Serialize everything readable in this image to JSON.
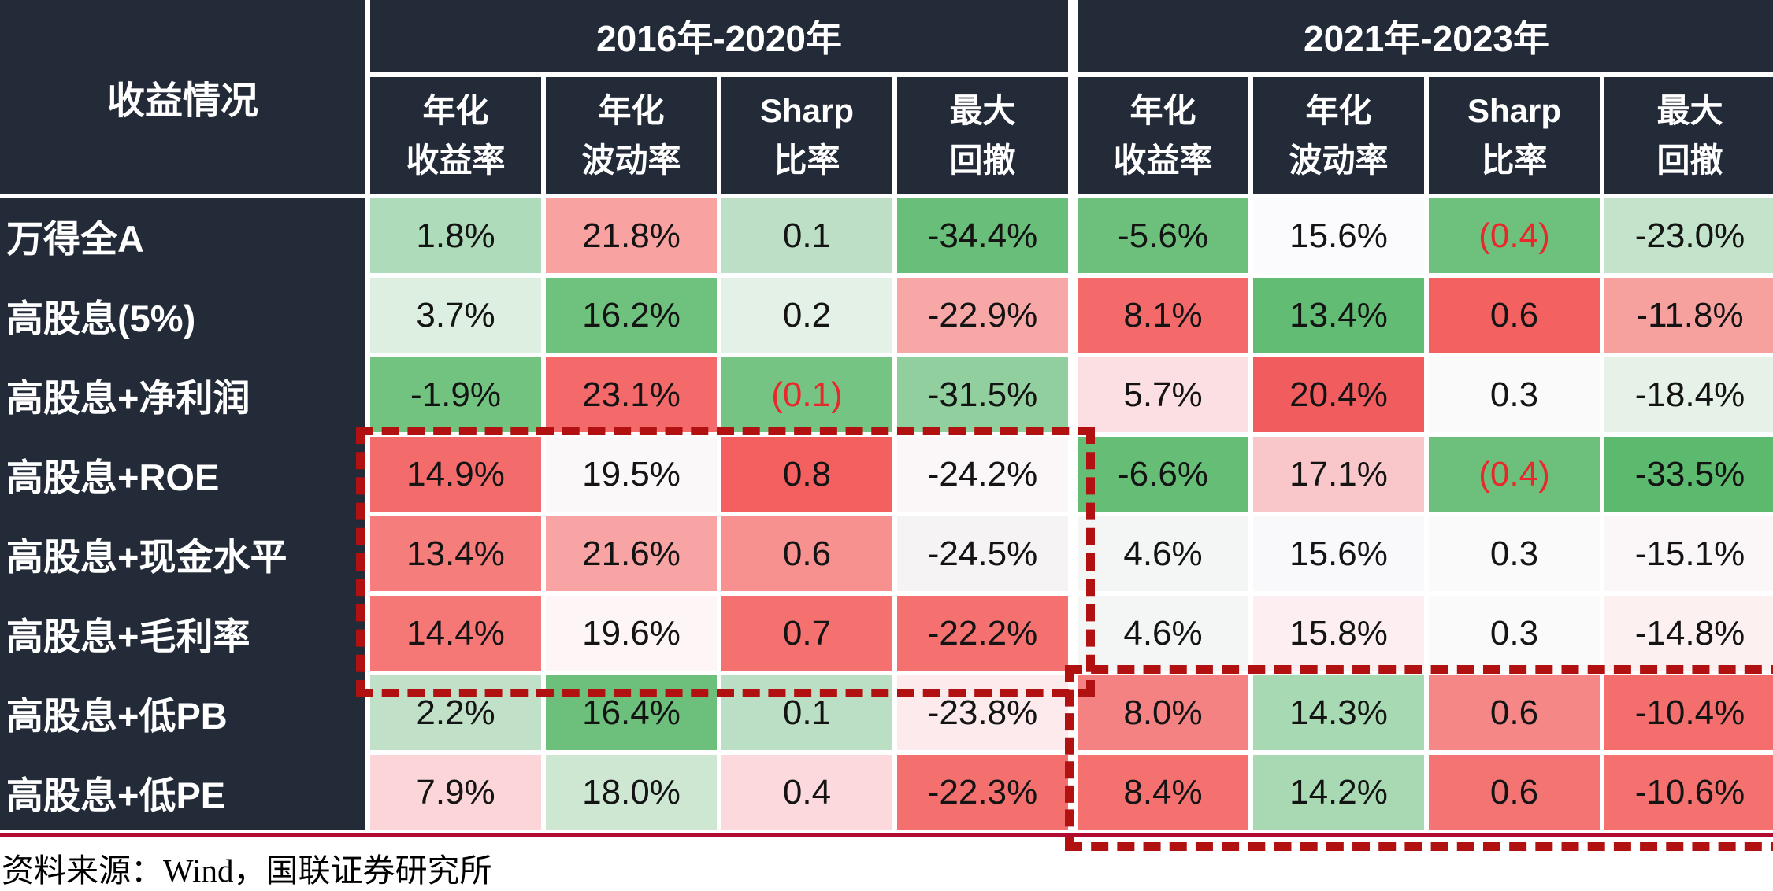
{
  "table": {
    "corner_header": "收益情况",
    "groups": [
      {
        "label": "2016年-2020年"
      },
      {
        "label": "2021年-2023年"
      }
    ],
    "metrics": [
      {
        "line1": "年化",
        "line2": "收益率"
      },
      {
        "line1": "年化",
        "line2": "波动率"
      },
      {
        "line1": "Sharp",
        "line2": "比率"
      },
      {
        "line1": "最大",
        "line2": "回撤"
      }
    ],
    "rows": [
      {
        "label": "万得全A",
        "cells": [
          {
            "text": "1.8%",
            "bg": "#AEDCBA"
          },
          {
            "text": "21.8%",
            "bg": "#F8A2A2"
          },
          {
            "text": "0.1",
            "bg": "#BCDFC5"
          },
          {
            "text": "-34.4%",
            "bg": "#69BE79"
          },
          {
            "text": "-5.6%",
            "bg": "#6CC07B"
          },
          {
            "text": "15.6%",
            "bg": "#FBFBFD"
          },
          {
            "text": "(0.4)",
            "bg": "#6EC17D",
            "fg": "#E8282B"
          },
          {
            "text": "-23.0%",
            "bg": "#C3E3CA"
          }
        ]
      },
      {
        "label": "高股息(5%)",
        "cells": [
          {
            "text": "3.7%",
            "bg": "#DCEFE1"
          },
          {
            "text": "16.2%",
            "bg": "#6FC17E"
          },
          {
            "text": "0.2",
            "bg": "#E3F1E6"
          },
          {
            "text": "-22.9%",
            "bg": "#F8A7A7"
          },
          {
            "text": "8.1%",
            "bg": "#F4696A"
          },
          {
            "text": "13.4%",
            "bg": "#62BC74"
          },
          {
            "text": "0.6",
            "bg": "#F36160"
          },
          {
            "text": "-11.8%",
            "bg": "#F7A19F"
          }
        ]
      },
      {
        "label": "高股息+净利润",
        "cells": [
          {
            "text": "-1.9%",
            "bg": "#72C280"
          },
          {
            "text": "23.1%",
            "bg": "#F4696A"
          },
          {
            "text": "(0.1)",
            "bg": "#76C483",
            "fg": "#E8282B"
          },
          {
            "text": "-31.5%",
            "bg": "#92CF9E"
          },
          {
            "text": "5.7%",
            "bg": "#FCDFE2"
          },
          {
            "text": "20.4%",
            "bg": "#F15D5E"
          },
          {
            "text": "0.3",
            "bg": "#FAFAFB"
          },
          {
            "text": "-18.4%",
            "bg": "#E6F2E8"
          }
        ]
      },
      {
        "label": "高股息+ROE",
        "cells": [
          {
            "text": "14.9%",
            "bg": "#F46B6B"
          },
          {
            "text": "19.5%",
            "bg": "#FBF8F9"
          },
          {
            "text": "0.8",
            "bg": "#F46060"
          },
          {
            "text": "-24.2%",
            "bg": "#FBF7F8"
          },
          {
            "text": "-6.6%",
            "bg": "#65BD76"
          },
          {
            "text": "17.1%",
            "bg": "#F9C7C9"
          },
          {
            "text": "(0.4)",
            "bg": "#6DC07C",
            "fg": "#E8282B"
          },
          {
            "text": "-33.5%",
            "bg": "#5CBA6F"
          }
        ]
      },
      {
        "label": "高股息+现金水平",
        "cells": [
          {
            "text": "13.4%",
            "bg": "#F57E7D"
          },
          {
            "text": "21.6%",
            "bg": "#F8A4A4"
          },
          {
            "text": "0.6",
            "bg": "#F69190"
          },
          {
            "text": "-24.5%",
            "bg": "#F5F3F4"
          },
          {
            "text": "4.6%",
            "bg": "#F3F6F4"
          },
          {
            "text": "15.6%",
            "bg": "#F9F8FA"
          },
          {
            "text": "0.3",
            "bg": "#FAFAFB"
          },
          {
            "text": "-15.1%",
            "bg": "#FBF7F9"
          }
        ]
      },
      {
        "label": "高股息+毛利率",
        "cells": [
          {
            "text": "14.4%",
            "bg": "#F57776"
          },
          {
            "text": "19.6%",
            "bg": "#FDF5F6"
          },
          {
            "text": "0.7",
            "bg": "#F47170"
          },
          {
            "text": "-22.2%",
            "bg": "#F47170"
          },
          {
            "text": "4.6%",
            "bg": "#F3F6F4"
          },
          {
            "text": "15.8%",
            "bg": "#FDEFF1"
          },
          {
            "text": "0.3",
            "bg": "#FAFAFB"
          },
          {
            "text": "-14.8%",
            "bg": "#FDF0F1"
          }
        ]
      },
      {
        "label": "高股息+低PB",
        "cells": [
          {
            "text": "2.2%",
            "bg": "#C0E1C8"
          },
          {
            "text": "16.4%",
            "bg": "#6DC07C"
          },
          {
            "text": "0.1",
            "bg": "#BBDFC4"
          },
          {
            "text": "-23.8%",
            "bg": "#FDEAEC"
          },
          {
            "text": "8.0%",
            "bg": "#F58282"
          },
          {
            "text": "14.3%",
            "bg": "#A7D9B2"
          },
          {
            "text": "0.6",
            "bg": "#F68787"
          },
          {
            "text": "-10.4%",
            "bg": "#F46E6D"
          }
        ]
      },
      {
        "label": "高股息+低PE",
        "cells": [
          {
            "text": "7.9%",
            "bg": "#FBD5D8"
          },
          {
            "text": "18.0%",
            "bg": "#CDE7D3"
          },
          {
            "text": "0.4",
            "bg": "#FCD9DC"
          },
          {
            "text": "-22.3%",
            "bg": "#F4706E"
          },
          {
            "text": "8.4%",
            "bg": "#F4716F"
          },
          {
            "text": "14.2%",
            "bg": "#A8D9B3"
          },
          {
            "text": "0.6",
            "bg": "#F47473"
          },
          {
            "text": "-10.6%",
            "bg": "#F47170"
          }
        ]
      }
    ]
  },
  "colors": {
    "header_bg": "#232A38",
    "cell_text": "#141414",
    "negative_sharpe_text": "#E8282B",
    "dash_border": "#B21111",
    "bottom_rule": "#B00A31"
  },
  "source_note": "资料来源：Wind，国联证券研究所",
  "chart_data": {
    "type": "table",
    "row_label_header": "收益情况",
    "column_groups": [
      {
        "period": "2016年-2020年",
        "metrics": [
          "年化收益率",
          "年化波动率",
          "Sharp比率",
          "最大回撤"
        ]
      },
      {
        "period": "2021年-2023年",
        "metrics": [
          "年化收益率",
          "年化波动率",
          "Sharp比率",
          "最大回撤"
        ]
      }
    ],
    "rows": [
      {
        "name": "万得全A",
        "period_2016_2020": [
          "1.8%",
          "21.8%",
          "0.1",
          "-34.4%"
        ],
        "period_2021_2023": [
          "-5.6%",
          "15.6%",
          "(0.4)",
          "-23.0%"
        ]
      },
      {
        "name": "高股息(5%)",
        "period_2016_2020": [
          "3.7%",
          "16.2%",
          "0.2",
          "-22.9%"
        ],
        "period_2021_2023": [
          "8.1%",
          "13.4%",
          "0.6",
          "-11.8%"
        ]
      },
      {
        "name": "高股息+净利润",
        "period_2016_2020": [
          "-1.9%",
          "23.1%",
          "(0.1)",
          "-31.5%"
        ],
        "period_2021_2023": [
          "5.7%",
          "20.4%",
          "0.3",
          "-18.4%"
        ]
      },
      {
        "name": "高股息+ROE",
        "period_2016_2020": [
          "14.9%",
          "19.5%",
          "0.8",
          "-24.2%"
        ],
        "period_2021_2023": [
          "-6.6%",
          "17.1%",
          "(0.4)",
          "-33.5%"
        ]
      },
      {
        "name": "高股息+现金水平",
        "period_2016_2020": [
          "13.4%",
          "21.6%",
          "0.6",
          "-24.5%"
        ],
        "period_2021_2023": [
          "4.6%",
          "15.6%",
          "0.3",
          "-15.1%"
        ]
      },
      {
        "name": "高股息+毛利率",
        "period_2016_2020": [
          "14.4%",
          "19.6%",
          "0.7",
          "-22.2%"
        ],
        "period_2021_2023": [
          "4.6%",
          "15.8%",
          "0.3",
          "-14.8%"
        ]
      },
      {
        "name": "高股息+低PB",
        "period_2016_2020": [
          "2.2%",
          "16.4%",
          "0.1",
          "-23.8%"
        ],
        "period_2021_2023": [
          "8.0%",
          "14.3%",
          "0.6",
          "-10.4%"
        ]
      },
      {
        "name": "高股息+低PE",
        "period_2016_2020": [
          "7.9%",
          "18.0%",
          "0.4",
          "-22.3%"
        ],
        "period_2021_2023": [
          "8.4%",
          "14.2%",
          "0.6",
          "-10.6%"
        ]
      }
    ],
    "highlighted_regions": [
      {
        "period": "2016年-2020年",
        "rows": [
          "高股息+ROE",
          "高股息+现金水平",
          "高股息+毛利率"
        ]
      },
      {
        "period": "2021年-2023年",
        "rows": [
          "高股息+低PB",
          "高股息+低PE"
        ]
      }
    ],
    "legend_hint": "red shading = higher/worse-volatility or better-return heat, green shading = lower values; cell heatmap per column"
  }
}
